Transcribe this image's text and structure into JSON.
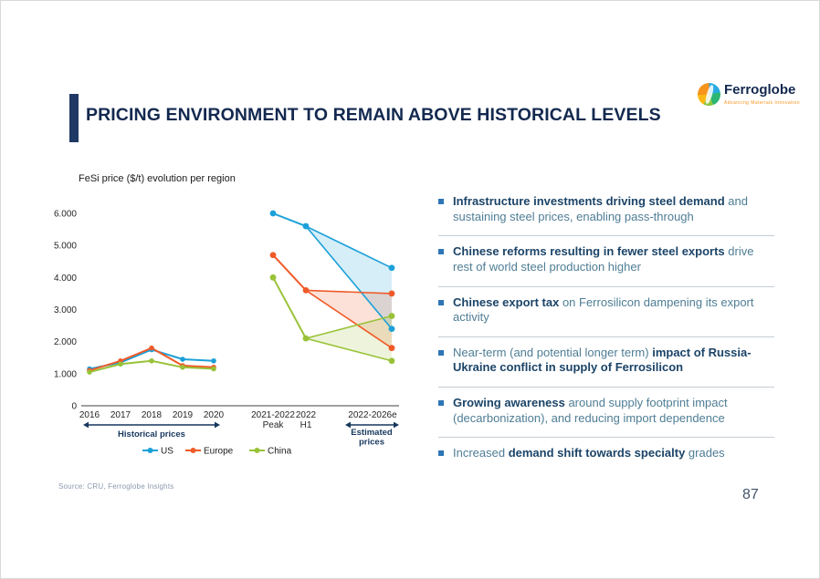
{
  "slide": {
    "title": "PRICING ENVIRONMENT TO REMAIN ABOVE HISTORICAL LEVELS",
    "page_number": "87",
    "source": "Source: CRU, Ferroglobe Insights"
  },
  "logo": {
    "brand": "Ferroglobe",
    "tagline": "Advancing Materials Innovation"
  },
  "colors": {
    "accent_bar": "#1F3864",
    "title_text": "#13294F",
    "bullet_square": "#2E75B6",
    "bullet_bold_text": "#1B4468",
    "bullet_regular_text": "#4E7D95",
    "divider": "#C5CDD3",
    "arrow": "#17375E",
    "us_series": "#1BA0D8",
    "europe_series": "#F05A28",
    "china_series": "#99C238"
  },
  "chart_data": {
    "type": "line",
    "title": "FeSi price ($/t) evolution per region",
    "ylim": [
      0,
      6000
    ],
    "grid": "off",
    "legend_position": "bottom",
    "y_ticks": [
      {
        "value": 6000,
        "label": "6.000"
      },
      {
        "value": 5000,
        "label": "5.000"
      },
      {
        "value": 4000,
        "label": "4.000"
      },
      {
        "value": 3000,
        "label": "3.000"
      },
      {
        "value": 2000,
        "label": "2.000"
      },
      {
        "value": 1000,
        "label": "1.000"
      },
      {
        "value": 0,
        "label": "0"
      }
    ],
    "x_categories_historical": [
      "2016",
      "2017",
      "2018",
      "2019",
      "2020"
    ],
    "x_categories_special": [
      {
        "lines": [
          "2021-2022",
          "Peak"
        ]
      },
      {
        "lines": [
          "2022",
          "H1"
        ]
      },
      {
        "lines": [
          "2022-2026e"
        ]
      }
    ],
    "series": [
      {
        "name": "US",
        "color": "#1BA0D8",
        "historical": [
          1150,
          1350,
          1750,
          1450,
          1400
        ],
        "peak": 6000,
        "h1": 5600,
        "estimate_high": 4300,
        "estimate_low": 2400
      },
      {
        "name": "Europe",
        "color": "#F05A28",
        "historical": [
          1100,
          1400,
          1800,
          1250,
          1200
        ],
        "peak": 4700,
        "h1": 3600,
        "estimate_high": 3500,
        "estimate_low": 1800
      },
      {
        "name": "China",
        "color": "#99C238",
        "historical": [
          1050,
          1300,
          1400,
          1200,
          1150
        ],
        "peak": 4000,
        "h1": 2100,
        "estimate_high": 2800,
        "estimate_low": 1400
      }
    ],
    "annotations": {
      "historical": "Historical prices",
      "estimated_lines": [
        "Estimated",
        "prices"
      ]
    }
  },
  "bullets": [
    {
      "segments": [
        {
          "text": "Infrastructure investments driving steel demand",
          "bold": true
        },
        {
          "text": " and sustaining steel prices, enabling pass-through",
          "bold": false
        }
      ]
    },
    {
      "segments": [
        {
          "text": "Chinese reforms resulting in fewer steel exports",
          "bold": true
        },
        {
          "text": " drive rest of world steel production higher",
          "bold": false
        }
      ]
    },
    {
      "segments": [
        {
          "text": "Chinese export tax",
          "bold": true
        },
        {
          "text": " on Ferrosilicon dampening its export activity",
          "bold": false
        }
      ]
    },
    {
      "segments": [
        {
          "text": "Near-term (and potential longer term) ",
          "bold": false
        },
        {
          "text": "impact of Russia-Ukraine conflict in supply of Ferrosilicon",
          "bold": true
        }
      ]
    },
    {
      "segments": [
        {
          "text": "Growing awareness",
          "bold": true
        },
        {
          "text": " around supply footprint impact (decarbonization), and reducing import dependence",
          "bold": false
        }
      ]
    },
    {
      "segments": [
        {
          "text": "Increased ",
          "bold": false
        },
        {
          "text": "demand shift towards specialty",
          "bold": true
        },
        {
          "text": " grades",
          "bold": false
        }
      ]
    }
  ]
}
